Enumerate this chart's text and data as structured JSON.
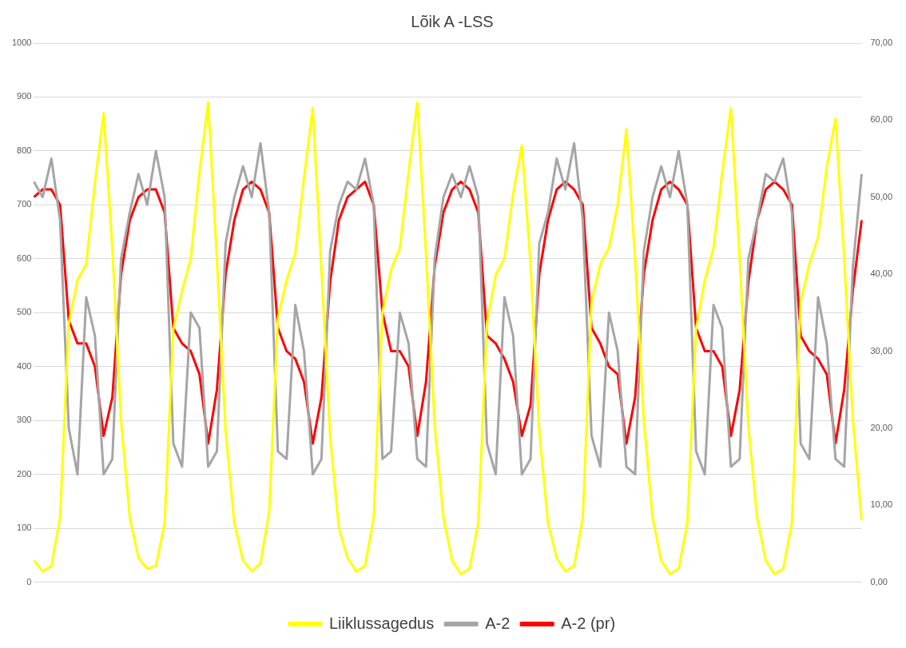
{
  "chart_data": {
    "type": "line",
    "title": "Lõik A -LSS",
    "categories": [
      null,
      null,
      null,
      null,
      null,
      null,
      null,
      null,
      null,
      null,
      null,
      null,
      null,
      null,
      null,
      null,
      null,
      null,
      null,
      null,
      null,
      null,
      null,
      null,
      null,
      null,
      null,
      null,
      null,
      null,
      null,
      null,
      null,
      null,
      null,
      null,
      null,
      null,
      null,
      null,
      null,
      null,
      null,
      null,
      null,
      null,
      null,
      null,
      null,
      null,
      null,
      null,
      null,
      null,
      null,
      null,
      null,
      null,
      null,
      null,
      null,
      null,
      null,
      null,
      null,
      null,
      null,
      null,
      null,
      null,
      null,
      null,
      null,
      null,
      null,
      null,
      null,
      null,
      null,
      null,
      null,
      null,
      null,
      null,
      null,
      null,
      null,
      null,
      null,
      null,
      null,
      null,
      null,
      null,
      null,
      null
    ],
    "series": [
      {
        "name": "Liiklussagedus",
        "color": "#ffff00",
        "values": [
          40,
          20,
          30,
          120,
          480,
          560,
          590,
          740,
          870,
          620,
          300,
          120,
          45,
          25,
          30,
          110,
          470,
          540,
          600,
          760,
          890,
          600,
          280,
          110,
          40,
          20,
          35,
          130,
          490,
          560,
          610,
          750,
          880,
          580,
          270,
          100,
          45,
          20,
          30,
          120,
          500,
          580,
          620,
          760,
          890,
          610,
          290,
          120,
          40,
          15,
          25,
          110,
          480,
          570,
          600,
          720,
          810,
          590,
          280,
          110,
          45,
          20,
          30,
          120,
          520,
          590,
          620,
          700,
          840,
          600,
          300,
          120,
          40,
          15,
          25,
          110,
          470,
          560,
          620,
          760,
          880,
          600,
          290,
          120,
          40,
          15,
          25,
          110,
          520,
          590,
          640,
          770,
          860,
          600,
          300,
          115
        ]
      },
      {
        "name": "A-2",
        "color": "#a5a5a5",
        "axis": "y2",
        "values": [
          52,
          50,
          55,
          47,
          20,
          14,
          37,
          32,
          14,
          16,
          42,
          48,
          53,
          49,
          56,
          50,
          18,
          15,
          35,
          33,
          15,
          17,
          44,
          50,
          54,
          50,
          57,
          48,
          17,
          16,
          36,
          30,
          14,
          16,
          43,
          49,
          52,
          51,
          55,
          49,
          16,
          17,
          35,
          31,
          16,
          15,
          42,
          50,
          53,
          50,
          54,
          50,
          18,
          14,
          37,
          32,
          14,
          16,
          44,
          48,
          55,
          51,
          57,
          47,
          19,
          15,
          35,
          30,
          15,
          14,
          43,
          50,
          54,
          50,
          56,
          49,
          17,
          14,
          36,
          33,
          15,
          16,
          42,
          47,
          53,
          52,
          55,
          48,
          18,
          16,
          37,
          31,
          16,
          15,
          41,
          53
        ]
      },
      {
        "name": "A-2 (pr)",
        "color": "#ff0000",
        "axis": "y2",
        "values": [
          50,
          51,
          51,
          49,
          34,
          31,
          31,
          28,
          19,
          24,
          40,
          47,
          50,
          51,
          51,
          48,
          33,
          31,
          30,
          27,
          18,
          25,
          40,
          47,
          51,
          52,
          51,
          48,
          33,
          30,
          29,
          26,
          18,
          24,
          39,
          47,
          50,
          51,
          52,
          49,
          35,
          30,
          30,
          28,
          19,
          26,
          41,
          48,
          51,
          52,
          51,
          48,
          32,
          31,
          29,
          26,
          19,
          23,
          40,
          47,
          51,
          52,
          51,
          49,
          33,
          31,
          28,
          27,
          18,
          24,
          40,
          47,
          51,
          52,
          51,
          49,
          33,
          30,
          30,
          28,
          19,
          25,
          39,
          47,
          51,
          52,
          51,
          49,
          32,
          30,
          29,
          27,
          18,
          25,
          38,
          47
        ]
      }
    ],
    "ylim": [
      0,
      1000
    ],
    "yticks": [
      0,
      100,
      200,
      300,
      400,
      500,
      600,
      700,
      800,
      900,
      1000
    ],
    "y2lim": [
      0,
      70
    ],
    "y2ticks": [
      {
        "value": 0,
        "label": "0,00"
      },
      {
        "value": 10,
        "label": "10,00"
      },
      {
        "value": 20,
        "label": "20,00"
      },
      {
        "value": 30,
        "label": "30,00"
      },
      {
        "value": 40,
        "label": "40,00"
      },
      {
        "value": 50,
        "label": "50,00"
      },
      {
        "value": 60,
        "label": "60,00"
      },
      {
        "value": 70,
        "label": "70,00"
      }
    ],
    "grid": "y",
    "legend": "bottom",
    "marker": "none",
    "line_style": "solid"
  }
}
